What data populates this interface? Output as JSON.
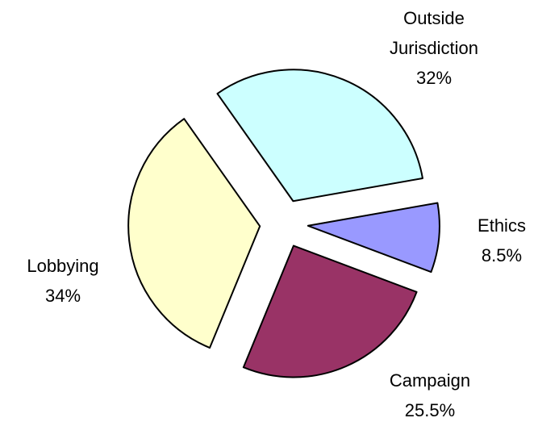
{
  "chart_data": {
    "type": "pie",
    "categories": [
      "Outside Jurisdiction",
      "Ethics",
      "Campaign",
      "Lobbying"
    ],
    "values": [
      32,
      8.5,
      25.5,
      34
    ],
    "value_labels": [
      "32%",
      "8.5%",
      "25.5%",
      "34%"
    ],
    "colors": [
      "#ccffff",
      "#9999ff",
      "#993366",
      "#ffffcc"
    ],
    "exploded": true
  }
}
